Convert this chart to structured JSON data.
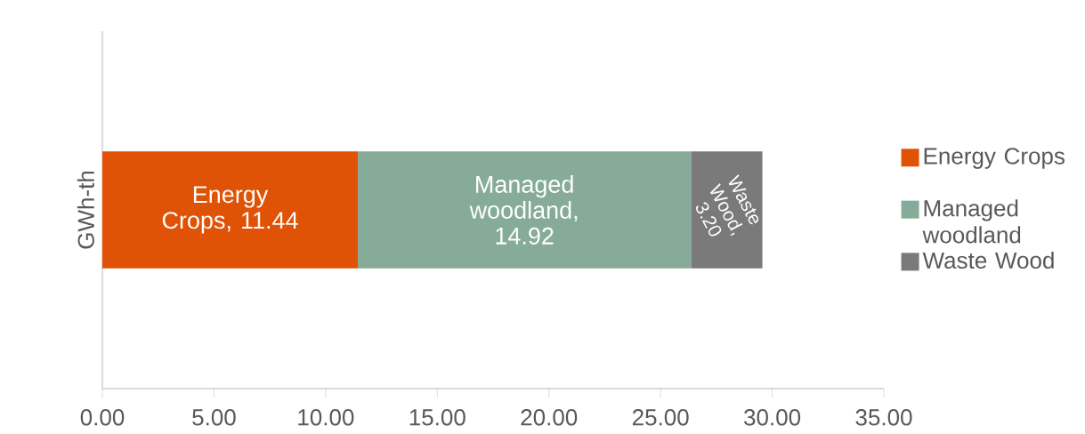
{
  "chart_data": {
    "type": "bar",
    "orientation": "horizontal",
    "stacked": true,
    "categories": [
      null
    ],
    "ylabel": "GWh-th",
    "xlim": [
      0,
      35
    ],
    "xticks": [
      {
        "value": 0,
        "label": "0.00"
      },
      {
        "value": 5,
        "label": "5.00"
      },
      {
        "value": 10,
        "label": "10.00"
      },
      {
        "value": 15,
        "label": "15.00"
      },
      {
        "value": 20,
        "label": "20.00"
      },
      {
        "value": 25,
        "label": "25.00"
      },
      {
        "value": 30,
        "label": "30.00"
      },
      {
        "value": 35,
        "label": "35.00"
      }
    ],
    "series": [
      {
        "name": "Energy Crops",
        "color": "#e05206",
        "values": [
          11.44
        ],
        "value_labels": [
          "Energy Crops, 11.44"
        ]
      },
      {
        "name": "Managed woodland",
        "color": "#87ab99",
        "values": [
          14.92
        ],
        "value_labels": [
          "Managed woodland, 14.92"
        ]
      },
      {
        "name": "Waste Wood",
        "color": "#7a7a7a",
        "values": [
          3.2
        ],
        "value_labels": [
          "Waste Wood, 3.20"
        ]
      }
    ],
    "legend": "right",
    "grid": false
  }
}
